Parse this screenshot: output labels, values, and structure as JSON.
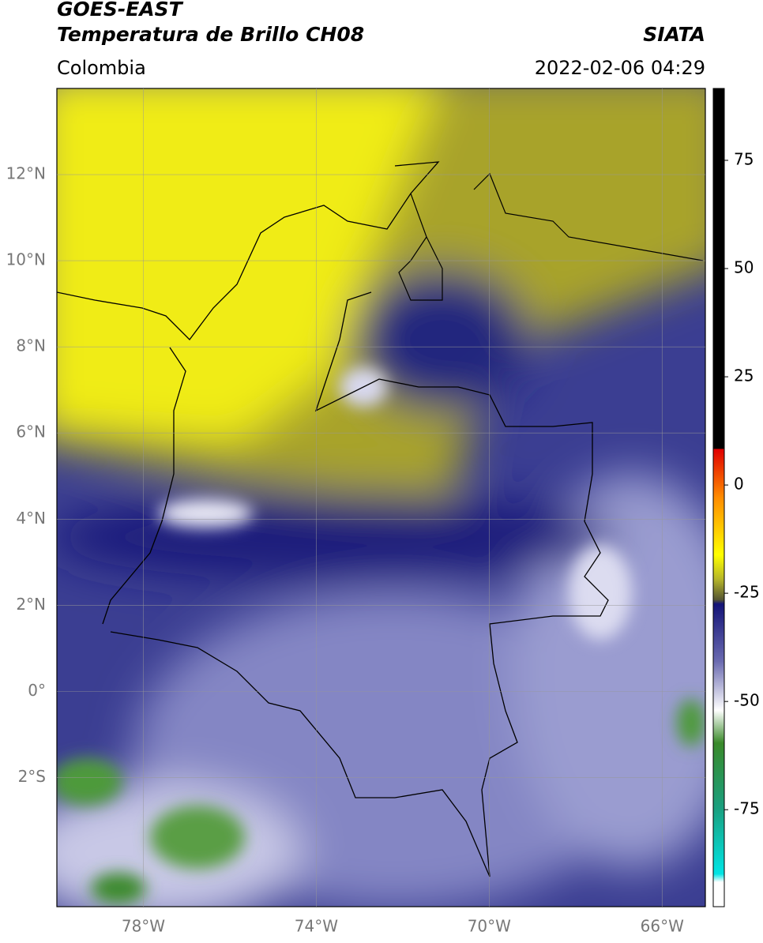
{
  "header": {
    "satellite": "GOES-EAST",
    "product": "Temperatura de Brillo CH08",
    "source": "SIATA",
    "region": "Colombia",
    "datetime": "2022-02-06 04:29"
  },
  "map": {
    "lon_range": [
      -80,
      -65
    ],
    "lat_range": [
      -5,
      14
    ],
    "lat_ticks": [
      {
        "value": 12,
        "label": "12°N"
      },
      {
        "value": 10,
        "label": "10°N"
      },
      {
        "value": 8,
        "label": "8°N"
      },
      {
        "value": 6,
        "label": "6°N"
      },
      {
        "value": 4,
        "label": "4°N"
      },
      {
        "value": 2,
        "label": "2°N"
      },
      {
        "value": 0,
        "label": "0°"
      },
      {
        "value": -2,
        "label": "2°S"
      }
    ],
    "lon_ticks": [
      {
        "value": -78,
        "label": "78°W"
      },
      {
        "value": -74,
        "label": "74°W"
      },
      {
        "value": -70,
        "label": "70°W"
      },
      {
        "value": -66,
        "label": "66°W"
      }
    ]
  },
  "colorbar": {
    "range": [
      -97.4,
      91.6
    ],
    "ticks": [
      75,
      50,
      25,
      0,
      -25,
      -50,
      -75
    ]
  }
}
